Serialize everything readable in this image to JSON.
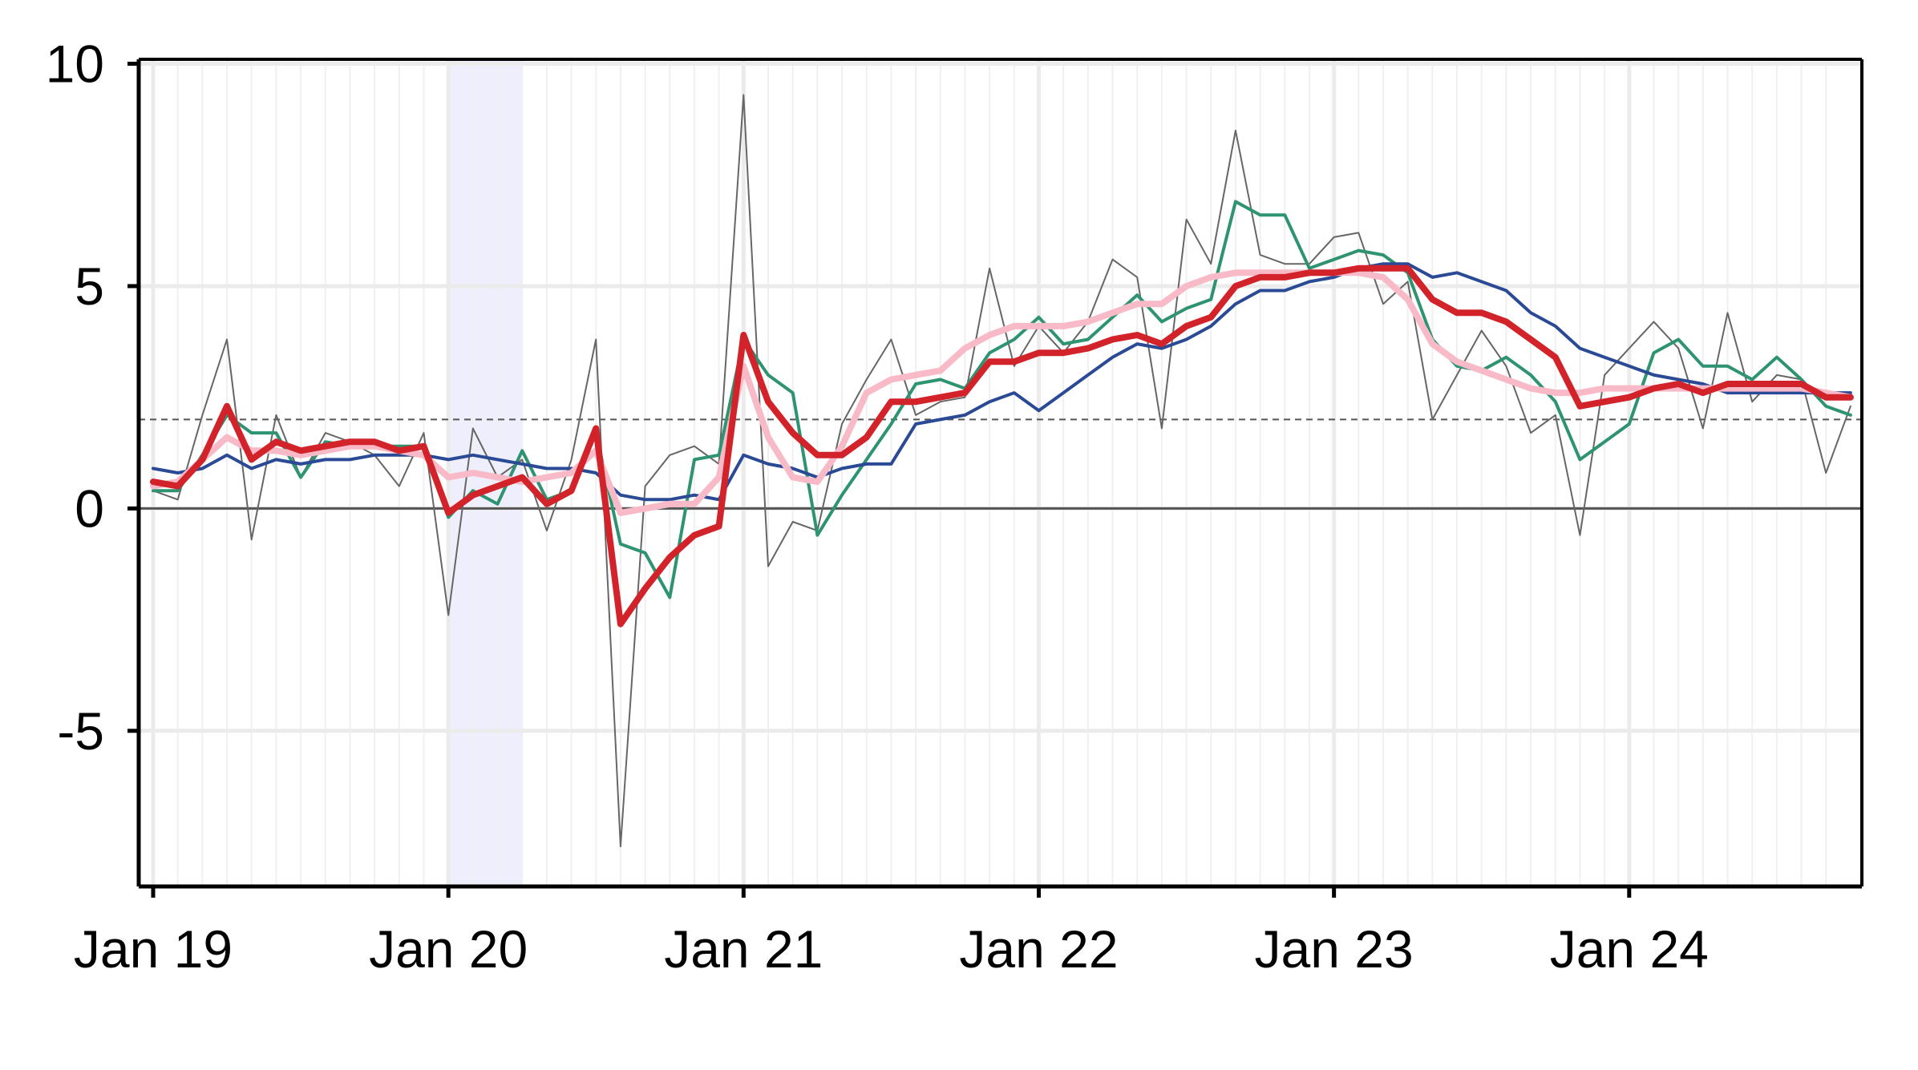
{
  "chart_data": {
    "type": "line",
    "title": "",
    "xlabel": "",
    "ylabel": "",
    "x_start": "2019-01",
    "x_end": "2024-09",
    "x_ticks": [
      {
        "label": "Jan 19",
        "month": "2019-01"
      },
      {
        "label": "Jan 20",
        "month": "2020-01"
      },
      {
        "label": "Jan 21",
        "month": "2021-01"
      },
      {
        "label": "Jan 22",
        "month": "2022-01"
      },
      {
        "label": "Jan 23",
        "month": "2023-01"
      },
      {
        "label": "Jan 24",
        "month": "2024-01"
      }
    ],
    "ylim": [
      -8.5,
      10.1
    ],
    "y_ticks": [
      {
        "label": "10",
        "value": 10
      },
      {
        "label": "5",
        "value": 5
      },
      {
        "label": "0",
        "value": 0
      },
      {
        "label": "-5",
        "value": -5
      }
    ],
    "grid": true,
    "legend": "none",
    "reference_lines": [
      {
        "value": 0,
        "style": "solid",
        "color": "#555555"
      },
      {
        "value": 2,
        "style": "dashed",
        "color": "#555555"
      }
    ],
    "shaded_region": {
      "start": "2020-01",
      "end": "2020-04",
      "color": "#eeeefc"
    },
    "series": [
      {
        "color": "#666666",
        "width": 2,
        "values": [
          0.4,
          0.2,
          2.1,
          3.8,
          -0.7,
          2.1,
          0.7,
          1.7,
          1.5,
          1.2,
          0.5,
          1.7,
          -2.4,
          1.8,
          0.7,
          1.1,
          -0.5,
          1.1,
          3.8,
          -7.6,
          0.5,
          1.2,
          1.4,
          1.0,
          9.3,
          -1.3,
          -0.3,
          -0.5,
          1.9,
          2.9,
          3.8,
          2.1,
          2.4,
          2.5,
          5.4,
          3.2,
          4.1,
          3.5,
          4.2,
          5.6,
          5.2,
          1.8,
          6.5,
          5.5,
          8.5,
          5.7,
          5.5,
          5.5,
          6.1,
          6.2,
          4.6,
          5.1,
          2.0,
          3.0,
          4.0,
          3.2,
          1.7,
          2.1,
          -0.6,
          3.0,
          3.6,
          4.2,
          3.6,
          1.8,
          4.4,
          2.4,
          3.0,
          2.9,
          0.8,
          2.3
        ]
      },
      {
        "color": "#2e9370",
        "width": 4,
        "values": [
          0.4,
          0.4,
          1.2,
          2.1,
          1.7,
          1.7,
          0.7,
          1.5,
          1.4,
          1.4,
          1.4,
          1.4,
          -0.2,
          0.4,
          0.1,
          1.3,
          0.2,
          0.4,
          1.7,
          -0.8,
          -1.0,
          -2.0,
          1.1,
          1.2,
          3.8,
          3.0,
          2.6,
          -0.6,
          0.3,
          1.1,
          1.9,
          2.8,
          2.9,
          2.7,
          3.5,
          3.8,
          4.3,
          3.7,
          3.8,
          4.3,
          4.8,
          4.2,
          4.5,
          4.7,
          6.9,
          6.6,
          6.6,
          5.4,
          5.6,
          5.8,
          5.7,
          5.3,
          3.8,
          3.2,
          3.1,
          3.4,
          3.0,
          2.4,
          1.1,
          1.5,
          1.9,
          3.5,
          3.8,
          3.2,
          3.2,
          2.9,
          3.4,
          2.9,
          2.3,
          2.1
        ]
      },
      {
        "color": "#2b4a96",
        "width": 4,
        "values": [
          0.9,
          0.8,
          0.9,
          1.2,
          0.9,
          1.1,
          1.0,
          1.1,
          1.1,
          1.2,
          1.2,
          1.2,
          1.1,
          1.2,
          1.1,
          1.0,
          0.9,
          0.9,
          0.8,
          0.3,
          0.2,
          0.2,
          0.3,
          0.2,
          1.2,
          1.0,
          0.9,
          0.7,
          0.9,
          1.0,
          1.0,
          1.9,
          2.0,
          2.1,
          2.4,
          2.6,
          2.2,
          2.6,
          3.0,
          3.4,
          3.7,
          3.6,
          3.8,
          4.1,
          4.6,
          4.9,
          4.9,
          5.1,
          5.2,
          5.4,
          5.5,
          5.5,
          5.2,
          5.3,
          5.1,
          4.9,
          4.4,
          4.1,
          3.6,
          3.4,
          3.2,
          3.0,
          2.9,
          2.8,
          2.6,
          2.6,
          2.6,
          2.6,
          2.6,
          2.6
        ]
      },
      {
        "color": "#f9bac8",
        "width": 8,
        "values": [
          0.5,
          0.6,
          1.1,
          1.6,
          1.3,
          1.3,
          1.2,
          1.3,
          1.4,
          1.4,
          1.3,
          1.2,
          0.7,
          0.8,
          0.7,
          0.6,
          0.7,
          0.8,
          1.3,
          -0.1,
          0.0,
          0.1,
          0.1,
          0.7,
          3.2,
          1.6,
          0.7,
          0.6,
          1.4,
          2.6,
          2.9,
          3.0,
          3.1,
          3.6,
          3.9,
          4.1,
          4.1,
          4.1,
          4.2,
          4.4,
          4.6,
          4.6,
          5.0,
          5.2,
          5.3,
          5.3,
          5.3,
          5.3,
          5.3,
          5.3,
          5.2,
          4.7,
          3.7,
          3.3,
          3.1,
          2.9,
          2.7,
          2.6,
          2.6,
          2.7,
          2.7,
          2.7,
          2.7,
          2.7,
          2.7,
          2.7,
          2.7,
          2.7,
          2.6,
          2.5
        ]
      },
      {
        "color": "#d2232a",
        "width": 8,
        "values": [
          0.6,
          0.5,
          1.1,
          2.3,
          1.1,
          1.5,
          1.3,
          1.4,
          1.5,
          1.5,
          1.3,
          1.4,
          -0.1,
          0.3,
          0.5,
          0.7,
          0.1,
          0.4,
          1.8,
          -2.6,
          -1.8,
          -1.1,
          -0.6,
          -0.4,
          3.9,
          2.4,
          1.7,
          1.2,
          1.2,
          1.6,
          2.4,
          2.4,
          2.5,
          2.6,
          3.3,
          3.3,
          3.5,
          3.5,
          3.6,
          3.8,
          3.9,
          3.7,
          4.1,
          4.3,
          5.0,
          5.2,
          5.2,
          5.3,
          5.3,
          5.4,
          5.4,
          5.4,
          4.7,
          4.4,
          4.4,
          4.2,
          3.8,
          3.4,
          2.3,
          2.4,
          2.5,
          2.7,
          2.8,
          2.6,
          2.8,
          2.8,
          2.8,
          2.8,
          2.5,
          2.5
        ]
      }
    ]
  }
}
